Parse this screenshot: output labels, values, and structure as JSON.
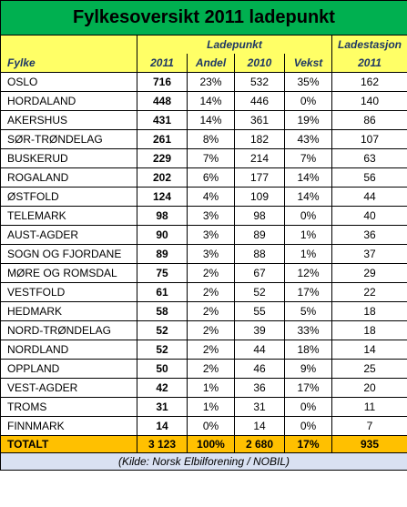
{
  "title": "Fylkesoversikt 2011 ladepunkt",
  "header": {
    "group_ladepunkt": "Ladepunkt",
    "group_ladestasjon": "Ladestasjon",
    "col_fylke": "Fylke",
    "col_2011": "2011",
    "col_andel": "Andel",
    "col_2010": "2010",
    "col_vekst": "Vekst",
    "col_station_2011": "2011"
  },
  "rows": [
    {
      "fylke": "OSLO",
      "y2011": "716",
      "andel": "23%",
      "y2010": "532",
      "vekst": "35%",
      "stasjon": "162"
    },
    {
      "fylke": "HORDALAND",
      "y2011": "448",
      "andel": "14%",
      "y2010": "446",
      "vekst": "0%",
      "stasjon": "140"
    },
    {
      "fylke": "AKERSHUS",
      "y2011": "431",
      "andel": "14%",
      "y2010": "361",
      "vekst": "19%",
      "stasjon": "86"
    },
    {
      "fylke": "SØR-TRØNDELAG",
      "y2011": "261",
      "andel": "8%",
      "y2010": "182",
      "vekst": "43%",
      "stasjon": "107"
    },
    {
      "fylke": "BUSKERUD",
      "y2011": "229",
      "andel": "7%",
      "y2010": "214",
      "vekst": "7%",
      "stasjon": "63"
    },
    {
      "fylke": "ROGALAND",
      "y2011": "202",
      "andel": "6%",
      "y2010": "177",
      "vekst": "14%",
      "stasjon": "56"
    },
    {
      "fylke": "ØSTFOLD",
      "y2011": "124",
      "andel": "4%",
      "y2010": "109",
      "vekst": "14%",
      "stasjon": "44"
    },
    {
      "fylke": "TELEMARK",
      "y2011": "98",
      "andel": "3%",
      "y2010": "98",
      "vekst": "0%",
      "stasjon": "40"
    },
    {
      "fylke": "AUST-AGDER",
      "y2011": "90",
      "andel": "3%",
      "y2010": "89",
      "vekst": "1%",
      "stasjon": "36"
    },
    {
      "fylke": "SOGN OG FJORDANE",
      "y2011": "89",
      "andel": "3%",
      "y2010": "88",
      "vekst": "1%",
      "stasjon": "37"
    },
    {
      "fylke": "MØRE OG ROMSDAL",
      "y2011": "75",
      "andel": "2%",
      "y2010": "67",
      "vekst": "12%",
      "stasjon": "29"
    },
    {
      "fylke": "VESTFOLD",
      "y2011": "61",
      "andel": "2%",
      "y2010": "52",
      "vekst": "17%",
      "stasjon": "22"
    },
    {
      "fylke": "HEDMARK",
      "y2011": "58",
      "andel": "2%",
      "y2010": "55",
      "vekst": "5%",
      "stasjon": "18"
    },
    {
      "fylke": "NORD-TRØNDELAG",
      "y2011": "52",
      "andel": "2%",
      "y2010": "39",
      "vekst": "33%",
      "stasjon": "18"
    },
    {
      "fylke": "NORDLAND",
      "y2011": "52",
      "andel": "2%",
      "y2010": "44",
      "vekst": "18%",
      "stasjon": "14"
    },
    {
      "fylke": "OPPLAND",
      "y2011": "50",
      "andel": "2%",
      "y2010": "46",
      "vekst": "9%",
      "stasjon": "25"
    },
    {
      "fylke": "VEST-AGDER",
      "y2011": "42",
      "andel": "1%",
      "y2010": "36",
      "vekst": "17%",
      "stasjon": "20"
    },
    {
      "fylke": "TROMS",
      "y2011": "31",
      "andel": "1%",
      "y2010": "31",
      "vekst": "0%",
      "stasjon": "11"
    },
    {
      "fylke": "FINNMARK",
      "y2011": "14",
      "andel": "0%",
      "y2010": "14",
      "vekst": "0%",
      "stasjon": "7"
    }
  ],
  "total": {
    "fylke": "TOTALT",
    "y2011": "3 123",
    "andel": "100%",
    "y2010": "2 680",
    "vekst": "17%",
    "stasjon": "935"
  },
  "source": "(Kilde: Norsk Elbilforening / NOBIL)",
  "colors": {
    "title_bg": "#00b050",
    "header_bg": "#ffff66",
    "total_bg": "#ffc000",
    "source_bg": "#d9e1f2"
  }
}
